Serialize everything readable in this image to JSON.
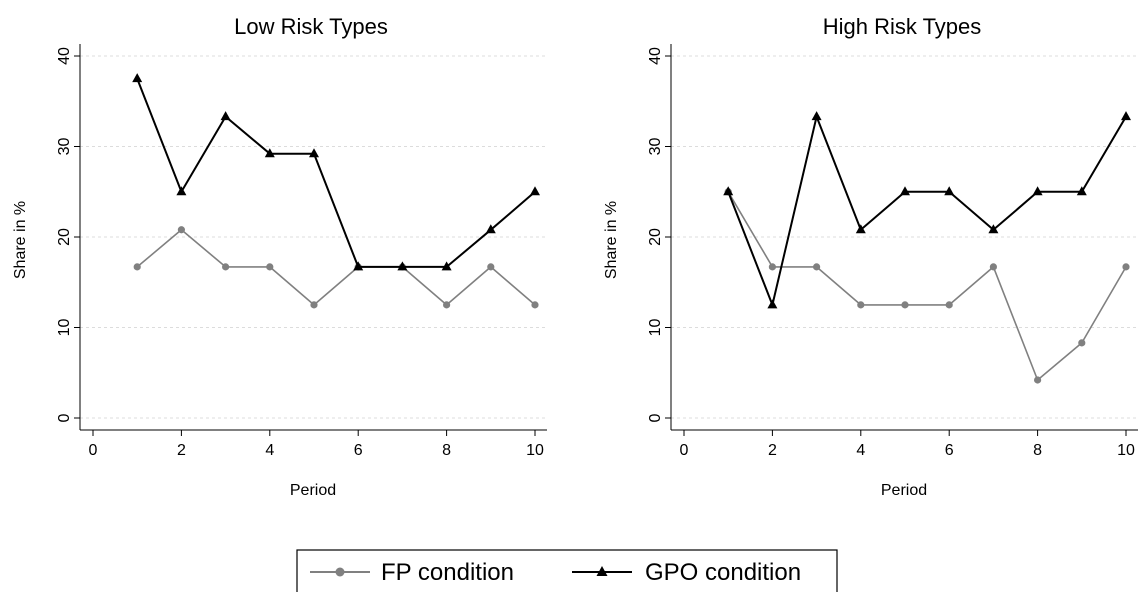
{
  "legend": {
    "items": [
      {
        "label": "FP condition",
        "marker": "circle",
        "color": "#808080"
      },
      {
        "label": "GPO condition",
        "marker": "triangle",
        "color": "#000000"
      }
    ]
  },
  "chart_data": [
    {
      "type": "line",
      "title": "Low Risk Types",
      "xlabel": "Period",
      "ylabel": "Share in %",
      "xlim": [
        0,
        10
      ],
      "ylim": [
        0,
        40
      ],
      "xticks": [
        "0",
        "2",
        "4",
        "6",
        "8",
        "10"
      ],
      "yticks": [
        "0",
        "10",
        "20",
        "30",
        "40"
      ],
      "grid": "horizontal dashed",
      "x": [
        1,
        2,
        3,
        4,
        5,
        6,
        7,
        8,
        9,
        10
      ],
      "series": [
        {
          "name": "FP condition",
          "color": "#808080",
          "marker": "circle",
          "values": [
            16.7,
            20.8,
            16.7,
            16.7,
            12.5,
            16.7,
            16.7,
            12.5,
            16.7,
            12.5
          ]
        },
        {
          "name": "GPO condition",
          "color": "#000000",
          "marker": "triangle",
          "values": [
            37.5,
            25.0,
            33.3,
            29.2,
            29.2,
            16.7,
            16.7,
            16.7,
            20.8,
            25.0
          ]
        }
      ]
    },
    {
      "type": "line",
      "title": "High Risk Types",
      "xlabel": "Period",
      "ylabel": "Share in %",
      "xlim": [
        0,
        10
      ],
      "ylim": [
        0,
        40
      ],
      "xticks": [
        "0",
        "2",
        "4",
        "6",
        "8",
        "10"
      ],
      "yticks": [
        "0",
        "10",
        "20",
        "30",
        "40"
      ],
      "grid": "horizontal dashed",
      "x": [
        1,
        2,
        3,
        4,
        5,
        6,
        7,
        8,
        9,
        10
      ],
      "series": [
        {
          "name": "FP condition",
          "color": "#808080",
          "marker": "circle",
          "values": [
            25.0,
            16.7,
            16.7,
            12.5,
            12.5,
            12.5,
            16.7,
            4.2,
            8.3,
            16.7
          ]
        },
        {
          "name": "GPO condition",
          "color": "#000000",
          "marker": "triangle",
          "values": [
            25.0,
            12.5,
            33.3,
            20.8,
            25.0,
            25.0,
            20.8,
            25.0,
            25.0,
            33.3
          ]
        }
      ]
    }
  ]
}
